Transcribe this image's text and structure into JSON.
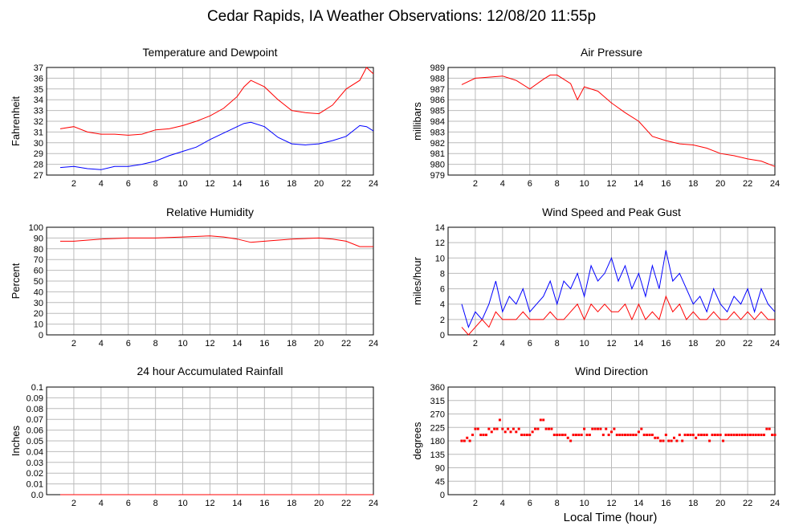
{
  "title": "Cedar Rapids, IA Weather Observations: 12/08/20 11:55p",
  "x_axis_label": "Local Time (hour)",
  "colors": {
    "red": "#ff0000",
    "blue": "#0000ff",
    "grid": "#bbbbbb"
  },
  "chart_data": [
    {
      "type": "line",
      "title": "Temperature and Dewpoint",
      "ylabel": "Fahrenheit",
      "xlim": [
        0,
        24
      ],
      "ylim": [
        27,
        37
      ],
      "x_ticks": [
        2,
        4,
        6,
        8,
        10,
        12,
        14,
        16,
        18,
        20,
        22,
        24
      ],
      "y_ticks": [
        27,
        28,
        29,
        30,
        31,
        32,
        33,
        34,
        35,
        36,
        37
      ],
      "grid": true,
      "x": [
        1,
        2,
        3,
        4,
        5,
        6,
        7,
        8,
        9,
        10,
        11,
        12,
        13,
        14,
        14.5,
        15,
        16,
        17,
        18,
        19,
        20,
        21,
        22,
        23,
        23.5,
        24
      ],
      "series": [
        {
          "color": "#ff0000",
          "values": [
            31.3,
            31.5,
            31.0,
            30.8,
            30.8,
            30.7,
            30.8,
            31.2,
            31.3,
            31.6,
            32.0,
            32.5,
            33.2,
            34.3,
            35.2,
            35.8,
            35.2,
            34.0,
            33.0,
            32.8,
            32.7,
            33.5,
            35.0,
            35.8,
            37.0,
            36.4
          ]
        },
        {
          "color": "#0000ff",
          "values": [
            27.7,
            27.8,
            27.6,
            27.5,
            27.8,
            27.8,
            28.0,
            28.3,
            28.8,
            29.2,
            29.6,
            30.3,
            30.9,
            31.5,
            31.8,
            31.9,
            31.5,
            30.5,
            29.9,
            29.8,
            29.9,
            30.2,
            30.6,
            31.6,
            31.5,
            31.1
          ]
        }
      ]
    },
    {
      "type": "line",
      "title": "Air Pressure",
      "ylabel": "millibars",
      "xlim": [
        0,
        24
      ],
      "ylim": [
        979,
        989
      ],
      "x_ticks": [
        2,
        4,
        6,
        8,
        10,
        12,
        14,
        16,
        18,
        20,
        22,
        24
      ],
      "y_ticks": [
        979,
        980,
        981,
        982,
        983,
        984,
        985,
        986,
        987,
        988,
        989
      ],
      "grid": true,
      "x": [
        1,
        2,
        3,
        4,
        5,
        6,
        7,
        7.5,
        8,
        9,
        9.5,
        10,
        11,
        12,
        13,
        14,
        15,
        16,
        17,
        18,
        19,
        20,
        21,
        22,
        23,
        24
      ],
      "series": [
        {
          "color": "#ff0000",
          "values": [
            987.4,
            988.0,
            988.1,
            988.2,
            987.8,
            987.0,
            987.9,
            988.3,
            988.3,
            987.5,
            986.0,
            987.2,
            986.8,
            985.7,
            984.8,
            984.0,
            982.6,
            982.2,
            981.9,
            981.8,
            981.5,
            981.0,
            980.8,
            980.5,
            980.3,
            979.8
          ]
        }
      ]
    },
    {
      "type": "line",
      "title": "Relative Humidity",
      "ylabel": "Percent",
      "xlim": [
        0,
        24
      ],
      "ylim": [
        0,
        100
      ],
      "x_ticks": [
        2,
        4,
        6,
        8,
        10,
        12,
        14,
        16,
        18,
        20,
        22,
        24
      ],
      "y_ticks": [
        0,
        10,
        20,
        30,
        40,
        50,
        60,
        70,
        80,
        90,
        100
      ],
      "grid": true,
      "x": [
        1,
        2,
        4,
        6,
        8,
        10,
        12,
        13,
        14,
        15,
        16,
        18,
        20,
        21,
        22,
        23,
        24
      ],
      "series": [
        {
          "color": "#ff0000",
          "values": [
            87,
            87,
            89,
            90,
            90,
            91,
            92,
            91,
            89,
            86,
            87,
            89,
            90,
            89,
            87,
            82,
            82
          ]
        }
      ]
    },
    {
      "type": "line",
      "title": "Wind Speed and Peak Gust",
      "ylabel": "miles/hour",
      "xlim": [
        0,
        24
      ],
      "ylim": [
        0,
        14
      ],
      "x_ticks": [
        2,
        4,
        6,
        8,
        10,
        12,
        14,
        16,
        18,
        20,
        22,
        24
      ],
      "y_ticks": [
        0,
        2,
        4,
        6,
        8,
        10,
        12,
        14
      ],
      "grid": true,
      "x": [
        1,
        1.5,
        2,
        2.5,
        3,
        3.5,
        4,
        4.5,
        5,
        5.5,
        6,
        6.5,
        7,
        7.5,
        8,
        8.5,
        9,
        9.5,
        10,
        10.5,
        11,
        11.5,
        12,
        12.5,
        13,
        13.5,
        14,
        14.5,
        15,
        15.5,
        16,
        16.5,
        17,
        17.5,
        18,
        18.5,
        19,
        19.5,
        20,
        20.5,
        21,
        21.5,
        22,
        22.5,
        23,
        23.5,
        24
      ],
      "series": [
        {
          "color": "#0000ff",
          "values": [
            4,
            1,
            3,
            2,
            4,
            7,
            3,
            5,
            4,
            6,
            3,
            4,
            5,
            7,
            4,
            7,
            6,
            8,
            5,
            9,
            7,
            8,
            10,
            7,
            9,
            6,
            8,
            5,
            9,
            6,
            11,
            7,
            8,
            6,
            4,
            5,
            3,
            6,
            4,
            3,
            5,
            4,
            6,
            3,
            6,
            4,
            3
          ]
        },
        {
          "color": "#ff0000",
          "values": [
            1,
            0,
            1,
            2,
            1,
            3,
            2,
            2,
            2,
            3,
            2,
            2,
            2,
            3,
            2,
            2,
            3,
            4,
            2,
            4,
            3,
            4,
            3,
            3,
            4,
            2,
            4,
            2,
            3,
            2,
            5,
            3,
            4,
            2,
            3,
            2,
            2,
            3,
            2,
            2,
            3,
            2,
            3,
            2,
            3,
            2,
            2
          ]
        }
      ]
    },
    {
      "type": "line",
      "title": "24 hour Accumulated Rainfall",
      "ylabel": "Inches",
      "xlim": [
        0,
        24
      ],
      "ylim": [
        0,
        0.1
      ],
      "x_ticks": [
        2,
        4,
        6,
        8,
        10,
        12,
        14,
        16,
        18,
        20,
        22,
        24
      ],
      "y_ticks": [
        "0.0",
        "0.01",
        "0.02",
        "0.03",
        "0.04",
        "0.05",
        "0.06",
        "0.07",
        "0.08",
        "0.09",
        "0.1"
      ],
      "grid": true,
      "x": [
        1,
        24
      ],
      "series": [
        {
          "color": "#ff0000",
          "values": [
            0,
            0
          ]
        }
      ]
    },
    {
      "type": "scatter",
      "title": "Wind Direction",
      "ylabel": "degrees",
      "xlim": [
        0,
        24
      ],
      "ylim": [
        0,
        360
      ],
      "x_ticks": [
        2,
        4,
        6,
        8,
        10,
        12,
        14,
        16,
        18,
        20,
        22,
        24
      ],
      "y_ticks": [
        0,
        45,
        90,
        135,
        180,
        225,
        270,
        315,
        360
      ],
      "grid": true,
      "x": [
        1.0,
        1.2,
        1.4,
        1.6,
        1.8,
        2.0,
        2.2,
        2.4,
        2.6,
        2.8,
        3.0,
        3.2,
        3.4,
        3.6,
        3.8,
        4.0,
        4.2,
        4.4,
        4.6,
        4.8,
        5.0,
        5.2,
        5.4,
        5.6,
        5.8,
        6.0,
        6.2,
        6.4,
        6.6,
        6.8,
        7.0,
        7.2,
        7.4,
        7.6,
        7.8,
        8.0,
        8.2,
        8.4,
        8.6,
        8.8,
        9.0,
        9.2,
        9.4,
        9.6,
        9.8,
        10.0,
        10.2,
        10.4,
        10.6,
        10.8,
        11.0,
        11.2,
        11.4,
        11.6,
        11.8,
        12.0,
        12.2,
        12.4,
        12.6,
        12.8,
        13.0,
        13.2,
        13.4,
        13.6,
        13.8,
        14.0,
        14.2,
        14.4,
        14.6,
        14.8,
        15.0,
        15.2,
        15.4,
        15.6,
        15.8,
        16.0,
        16.2,
        16.4,
        16.6,
        16.8,
        17.0,
        17.2,
        17.4,
        17.6,
        17.8,
        18.0,
        18.2,
        18.4,
        18.6,
        18.8,
        19.0,
        19.2,
        19.4,
        19.6,
        19.8,
        20.0,
        20.2,
        20.4,
        20.6,
        20.8,
        21.0,
        21.2,
        21.4,
        21.6,
        21.8,
        22.0,
        22.2,
        22.4,
        22.6,
        22.8,
        23.0,
        23.2,
        23.4,
        23.6,
        23.8,
        24.0
      ],
      "values": [
        180,
        180,
        190,
        180,
        200,
        220,
        220,
        200,
        200,
        200,
        220,
        210,
        220,
        220,
        250,
        220,
        210,
        220,
        210,
        220,
        210,
        220,
        200,
        200,
        200,
        200,
        210,
        220,
        220,
        250,
        250,
        220,
        220,
        220,
        200,
        200,
        200,
        200,
        200,
        190,
        180,
        200,
        200,
        200,
        200,
        220,
        200,
        200,
        220,
        220,
        220,
        220,
        200,
        220,
        200,
        210,
        220,
        200,
        200,
        200,
        200,
        200,
        200,
        200,
        200,
        210,
        220,
        200,
        200,
        200,
        200,
        190,
        190,
        180,
        180,
        200,
        180,
        180,
        190,
        180,
        200,
        180,
        200,
        200,
        200,
        200,
        190,
        200,
        200,
        200,
        200,
        180,
        200,
        200,
        200,
        200,
        180,
        200,
        200,
        200,
        200,
        200,
        200,
        200,
        200,
        200,
        200,
        200,
        200,
        200,
        200,
        200,
        220,
        220,
        200,
        200
      ]
    }
  ]
}
